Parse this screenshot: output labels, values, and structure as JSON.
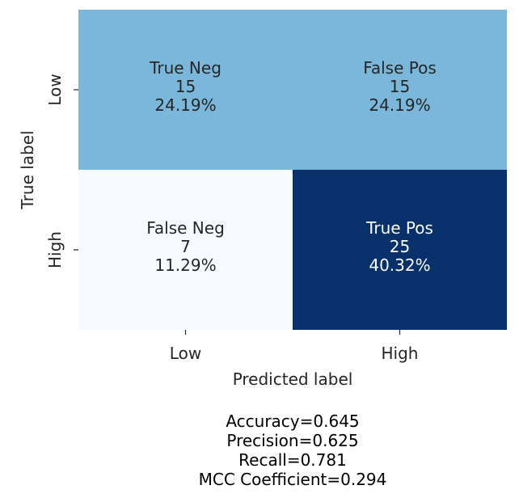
{
  "chart_data": {
    "type": "heatmap",
    "title": "",
    "xlabel": "Predicted label",
    "ylabel": "True label",
    "x_categories": [
      "Low",
      "High"
    ],
    "y_categories": [
      "Low",
      "High"
    ],
    "cells": [
      [
        {
          "name": "True Neg",
          "count": "15",
          "percent": "24.19%",
          "value": 15
        },
        {
          "name": "False Pos",
          "count": "15",
          "percent": "24.19%",
          "value": 15
        }
      ],
      [
        {
          "name": "False Neg",
          "count": "7",
          "percent": "11.29%",
          "value": 7
        },
        {
          "name": "True Pos",
          "count": "25",
          "percent": "40.32%",
          "value": 25
        }
      ]
    ],
    "colormap": "Blues",
    "colors": {
      "low": "#f7fbff",
      "mid": "#6bafd6",
      "high": "#08306b",
      "text_dark": "#262626",
      "text_light": "#ffffff"
    },
    "colorbar": false,
    "metrics": [
      "Accuracy=0.645",
      "Precision=0.625",
      "Recall=0.781",
      "MCC Coefficient=0.294"
    ]
  }
}
